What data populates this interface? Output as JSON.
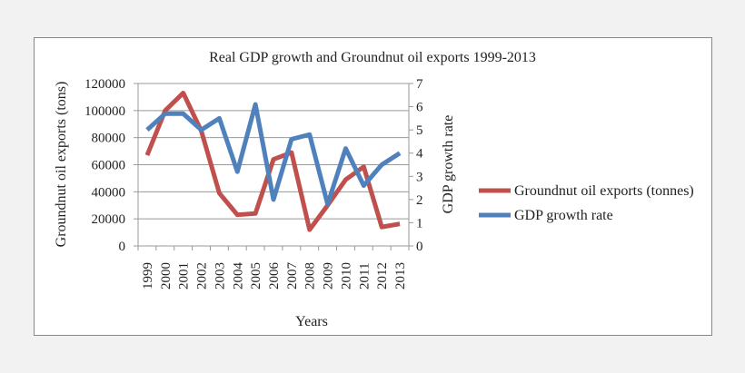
{
  "chart_data": {
    "type": "line",
    "title": "Real GDP growth and Groundnut oil exports 1999-2013",
    "xlabel": "Years",
    "ylabel_left": "Groundnut oil exports (tons)",
    "ylabel_right": "GDP growth rate",
    "ylim_left": [
      0,
      120000
    ],
    "ylim_right": [
      0,
      7
    ],
    "yticks_left": [
      "0",
      "20000",
      "40000",
      "60000",
      "80000",
      "100000",
      "120000"
    ],
    "yticks_right": [
      "0",
      "1",
      "2",
      "3",
      "4",
      "5",
      "6",
      "7"
    ],
    "grid": "horizontal",
    "legend_position": "right",
    "categories": [
      "1999",
      "2000",
      "2001",
      "2002",
      "2003",
      "2004",
      "2005",
      "2006",
      "2007",
      "2008",
      "2009",
      "2010",
      "2011",
      "2012",
      "2013"
    ],
    "series": [
      {
        "name": "Groundnut oil exports (tonnes)",
        "axis": "left",
        "color": "#c0504d",
        "values": [
          67000,
          100000,
          113000,
          85000,
          39000,
          23000,
          24000,
          64000,
          69000,
          12000,
          30000,
          49000,
          58500,
          14000,
          16300
        ]
      },
      {
        "name": "GDP growth rate",
        "axis": "right",
        "color": "#4f81bd",
        "values": [
          5.0,
          5.7,
          5.7,
          5.0,
          5.5,
          3.2,
          6.1,
          2.0,
          4.6,
          4.8,
          1.8,
          4.2,
          2.6,
          3.5,
          4.0
        ]
      }
    ]
  }
}
